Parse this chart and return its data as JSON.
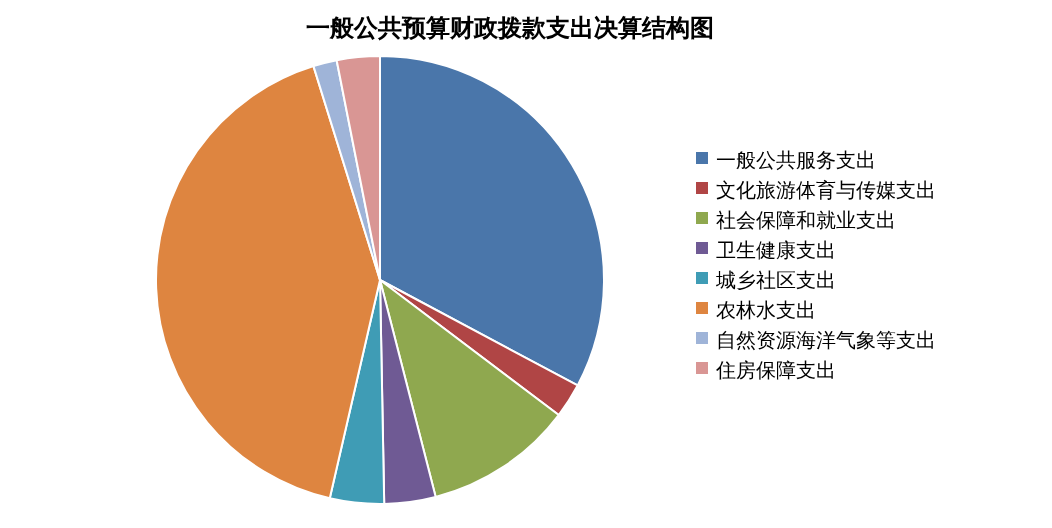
{
  "chart_data": {
    "type": "pie",
    "title": "一般公共预算财政拨款支出决算结构图",
    "categories": [
      "一般公共服务支出",
      "文化旅游体育与传媒支出",
      "社会保障和就业支出",
      "卫生健康支出",
      "城乡社区支出",
      "农林水支出",
      "自然资源海洋气象等支出",
      "住房保障支出"
    ],
    "values": [
      32.8,
      2.5,
      10.7,
      3.7,
      3.9,
      41.6,
      1.7,
      3.1
    ],
    "colors": [
      "#4a76aa",
      "#b04545",
      "#8fa84f",
      "#6f5a94",
      "#3f9cb5",
      "#de8540",
      "#9fb4d8",
      "#d99694"
    ],
    "legend": "right"
  }
}
